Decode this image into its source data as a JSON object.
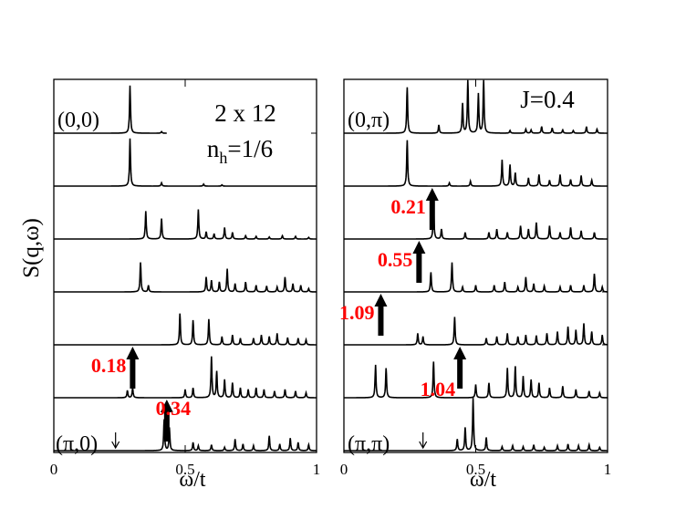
{
  "figure": {
    "ylabel": "S(q,ω)"
  },
  "chart_data": [
    {
      "type": "line",
      "panel": "left",
      "xlabel": "ω/t",
      "xlim": [
        0,
        1
      ],
      "xticks": [
        {
          "v": 0,
          "label": "0"
        },
        {
          "v": 0.5,
          "label": "0.5"
        },
        {
          "v": 1,
          "label": "1"
        }
      ],
      "annotations": [
        {
          "text": "2 x 12",
          "role": "title"
        },
        {
          "text": "n",
          "sub": "h",
          "suffix": "=1/6",
          "role": "subtitle"
        }
      ],
      "curve_labels": [
        {
          "text": "(0,0)",
          "curve": 0
        },
        {
          "text": "(π,0)",
          "curve": 6
        }
      ],
      "series": [
        {
          "peaks": [
            [
              0.29,
              1.45
            ],
            [
              0.41,
              0.05
            ]
          ],
          "flat_until": 0.43
        },
        {
          "peaks": [
            [
              0.29,
              1.45
            ],
            [
              0.41,
              0.1
            ],
            [
              0.57,
              0.06
            ],
            [
              0.64,
              0.04
            ]
          ]
        },
        {
          "peaks": [
            [
              0.35,
              0.85
            ],
            [
              0.41,
              0.62
            ],
            [
              0.55,
              0.9
            ],
            [
              0.58,
              0.22
            ],
            [
              0.61,
              0.16
            ],
            [
              0.65,
              0.35
            ],
            [
              0.68,
              0.2
            ],
            [
              0.73,
              0.1
            ],
            [
              0.77,
              0.08
            ],
            [
              0.82,
              0.06
            ],
            [
              0.87,
              0.1
            ],
            [
              0.92,
              0.08
            ],
            [
              0.97,
              0.05
            ]
          ]
        },
        {
          "peaks": [
            [
              0.33,
              0.9
            ],
            [
              0.36,
              0.2
            ],
            [
              0.58,
              0.45
            ],
            [
              0.6,
              0.35
            ],
            [
              0.63,
              0.3
            ],
            [
              0.66,
              0.7
            ],
            [
              0.69,
              0.25
            ],
            [
              0.73,
              0.3
            ],
            [
              0.77,
              0.2
            ],
            [
              0.81,
              0.18
            ],
            [
              0.85,
              0.15
            ],
            [
              0.88,
              0.45
            ],
            [
              0.91,
              0.25
            ],
            [
              0.94,
              0.2
            ],
            [
              0.97,
              0.1
            ]
          ]
        },
        {
          "peaks": [
            [
              0.48,
              0.95
            ],
            [
              0.53,
              0.75
            ],
            [
              0.59,
              0.78
            ],
            [
              0.64,
              0.25
            ],
            [
              0.68,
              0.3
            ],
            [
              0.71,
              0.2
            ],
            [
              0.76,
              0.2
            ],
            [
              0.79,
              0.3
            ],
            [
              0.82,
              0.25
            ],
            [
              0.85,
              0.35
            ],
            [
              0.89,
              0.22
            ],
            [
              0.93,
              0.2
            ],
            [
              0.96,
              0.15
            ]
          ]
        },
        {
          "peaks": [
            [
              0.28,
              0.22
            ],
            [
              0.3,
              0.3
            ],
            [
              0.5,
              0.25
            ],
            [
              0.53,
              0.3
            ],
            [
              0.6,
              1.25
            ],
            [
              0.62,
              0.8
            ],
            [
              0.65,
              0.55
            ],
            [
              0.68,
              0.45
            ],
            [
              0.71,
              0.3
            ],
            [
              0.74,
              0.25
            ],
            [
              0.77,
              0.3
            ],
            [
              0.8,
              0.25
            ],
            [
              0.84,
              0.2
            ],
            [
              0.88,
              0.25
            ],
            [
              0.92,
              0.2
            ],
            [
              0.96,
              0.15
            ]
          ]
        },
        {
          "peaks": [
            [
              0.42,
              0.95
            ],
            [
              0.44,
              0.7
            ],
            [
              0.53,
              0.25
            ],
            [
              0.55,
              0.15
            ],
            [
              0.6,
              0.18
            ],
            [
              0.65,
              0.1
            ],
            [
              0.69,
              0.35
            ],
            [
              0.72,
              0.2
            ],
            [
              0.76,
              0.15
            ],
            [
              0.82,
              0.45
            ],
            [
              0.86,
              0.2
            ],
            [
              0.9,
              0.38
            ],
            [
              0.93,
              0.25
            ],
            [
              0.97,
              0.18
            ]
          ]
        }
      ],
      "markers": [
        {
          "curve": 5,
          "x": 0.3,
          "label": "0.18",
          "label_side": "left"
        },
        {
          "curve": 6,
          "x": 0.43,
          "label": "0.34",
          "label_side": "above"
        },
        {
          "curve": 6,
          "x": 0.235,
          "kind": "small-arrow"
        }
      ]
    },
    {
      "type": "line",
      "panel": "right",
      "xlabel": "ω/t",
      "xlim": [
        0,
        1
      ],
      "xticks": [
        {
          "v": 0,
          "label": "0"
        },
        {
          "v": 0.5,
          "label": "0.5"
        },
        {
          "v": 1,
          "label": "1"
        }
      ],
      "annotations": [
        {
          "text": "J=0.4",
          "role": "title"
        }
      ],
      "curve_labels": [
        {
          "text": "(0,π)",
          "curve": 0
        },
        {
          "text": "(π,π)",
          "curve": 6
        }
      ],
      "series": [
        {
          "peaks": [
            [
              0.24,
              1.4
            ],
            [
              0.36,
              0.25
            ],
            [
              0.45,
              0.9
            ],
            [
              0.47,
              1.6
            ],
            [
              0.51,
              1.2
            ],
            [
              0.53,
              1.6
            ],
            [
              0.63,
              0.08
            ],
            [
              0.69,
              0.12
            ],
            [
              0.71,
              0.1
            ],
            [
              0.75,
              0.2
            ],
            [
              0.79,
              0.16
            ],
            [
              0.83,
              0.1
            ],
            [
              0.87,
              0.08
            ],
            [
              0.92,
              0.2
            ],
            [
              0.96,
              0.12
            ]
          ]
        },
        {
          "peaks": [
            [
              0.24,
              1.4
            ],
            [
              0.4,
              0.1
            ],
            [
              0.48,
              0.15
            ],
            [
              0.6,
              0.8
            ],
            [
              0.63,
              0.65
            ],
            [
              0.65,
              0.4
            ],
            [
              0.7,
              0.25
            ],
            [
              0.74,
              0.35
            ],
            [
              0.78,
              0.18
            ],
            [
              0.82,
              0.35
            ],
            [
              0.86,
              0.2
            ],
            [
              0.9,
              0.32
            ],
            [
              0.94,
              0.18
            ]
          ]
        },
        {
          "peaks": [
            [
              0.34,
              1.0
            ],
            [
              0.37,
              0.3
            ],
            [
              0.46,
              0.2
            ],
            [
              0.55,
              0.2
            ],
            [
              0.58,
              0.3
            ],
            [
              0.62,
              0.2
            ],
            [
              0.67,
              0.4
            ],
            [
              0.7,
              0.3
            ],
            [
              0.73,
              0.5
            ],
            [
              0.78,
              0.4
            ],
            [
              0.82,
              0.2
            ],
            [
              0.86,
              0.35
            ],
            [
              0.9,
              0.25
            ],
            [
              0.95,
              0.2
            ]
          ]
        },
        {
          "peaks": [
            [
              0.33,
              0.6
            ],
            [
              0.41,
              0.9
            ],
            [
              0.45,
              0.15
            ],
            [
              0.5,
              0.2
            ],
            [
              0.57,
              0.2
            ],
            [
              0.61,
              0.3
            ],
            [
              0.66,
              0.15
            ],
            [
              0.69,
              0.45
            ],
            [
              0.72,
              0.25
            ],
            [
              0.76,
              0.18
            ],
            [
              0.82,
              0.15
            ],
            [
              0.86,
              0.2
            ],
            [
              0.91,
              0.2
            ],
            [
              0.95,
              0.55
            ],
            [
              0.98,
              0.15
            ]
          ]
        },
        {
          "peaks": [
            [
              0.28,
              0.35
            ],
            [
              0.3,
              0.25
            ],
            [
              0.42,
              0.85
            ],
            [
              0.54,
              0.2
            ],
            [
              0.58,
              0.25
            ],
            [
              0.62,
              0.35
            ],
            [
              0.66,
              0.25
            ],
            [
              0.69,
              0.3
            ],
            [
              0.73,
              0.28
            ],
            [
              0.77,
              0.35
            ],
            [
              0.81,
              0.4
            ],
            [
              0.85,
              0.55
            ],
            [
              0.88,
              0.45
            ],
            [
              0.91,
              0.65
            ],
            [
              0.94,
              0.4
            ],
            [
              0.98,
              0.3
            ]
          ]
        },
        {
          "peaks": [
            [
              0.12,
              1.0
            ],
            [
              0.16,
              0.9
            ],
            [
              0.34,
              1.1
            ],
            [
              0.5,
              0.4
            ],
            [
              0.55,
              0.45
            ],
            [
              0.62,
              0.9
            ],
            [
              0.65,
              0.95
            ],
            [
              0.68,
              0.65
            ],
            [
              0.71,
              0.55
            ],
            [
              0.74,
              0.45
            ],
            [
              0.78,
              0.3
            ],
            [
              0.83,
              0.35
            ],
            [
              0.88,
              0.25
            ],
            [
              0.93,
              0.2
            ],
            [
              0.97,
              0.15
            ]
          ]
        },
        {
          "peaks": [
            [
              0.43,
              0.35
            ],
            [
              0.46,
              0.7
            ],
            [
              0.49,
              1.6
            ],
            [
              0.54,
              0.4
            ],
            [
              0.6,
              0.12
            ],
            [
              0.64,
              0.15
            ],
            [
              0.68,
              0.12
            ],
            [
              0.72,
              0.18
            ],
            [
              0.76,
              0.1
            ],
            [
              0.81,
              0.15
            ],
            [
              0.85,
              0.2
            ],
            [
              0.89,
              0.15
            ],
            [
              0.93,
              0.18
            ],
            [
              0.97,
              0.1
            ]
          ]
        }
      ],
      "markers": [
        {
          "curve": 2,
          "x": 0.335,
          "label": "0.21",
          "label_side": "left"
        },
        {
          "curve": 3,
          "x": 0.285,
          "label": "0.55",
          "label_side": "left"
        },
        {
          "curve": 4,
          "x": 0.14,
          "label": "1.09",
          "label_side": "left"
        },
        {
          "curve": 5,
          "x": 0.44,
          "label": "1.04",
          "label_side": "left-below"
        },
        {
          "curve": 6,
          "x": 0.3,
          "kind": "small-arrow"
        }
      ]
    }
  ],
  "style": {
    "line_color": "#000000",
    "label_color": "#ff0000"
  }
}
